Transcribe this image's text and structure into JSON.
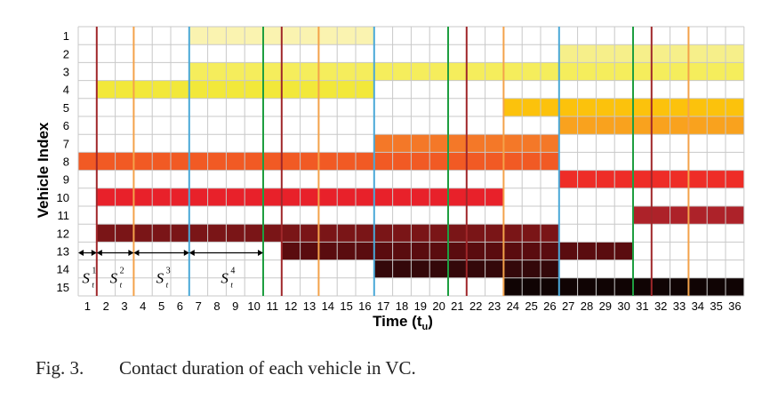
{
  "chart_data": {
    "type": "heatmap",
    "xlabel": "Time (t",
    "xlabel_sub": "u",
    "xlabel_close": ")",
    "ylabel": "Vehicle Index",
    "x_ticks": [
      "1",
      "2",
      "3",
      "4",
      "5",
      "6",
      "7",
      "8",
      "9",
      "10",
      "11",
      "12",
      "13",
      "14",
      "15",
      "16",
      "17",
      "18",
      "19",
      "20",
      "21",
      "22",
      "23",
      "24",
      "25",
      "26",
      "27",
      "28",
      "29",
      "30",
      "31",
      "32",
      "33",
      "34",
      "35",
      "36"
    ],
    "y_ticks": [
      "1",
      "2",
      "3",
      "4",
      "5",
      "6",
      "7",
      "8",
      "9",
      "10",
      "11",
      "12",
      "13",
      "14",
      "15"
    ],
    "grid": true,
    "contacts": [
      {
        "vehicle": 1,
        "start": 7,
        "end": 16,
        "color": "#faf3b0"
      },
      {
        "vehicle": 2,
        "start": 27,
        "end": 36,
        "color": "#f6ef8a"
      },
      {
        "vehicle": 3,
        "start": 7,
        "end": 36,
        "color": "#f5ed5c"
      },
      {
        "vehicle": 4,
        "start": 2,
        "end": 16,
        "color": "#f2e83a"
      },
      {
        "vehicle": 5,
        "start": 24,
        "end": 36,
        "color": "#fcc20c"
      },
      {
        "vehicle": 6,
        "start": 27,
        "end": 36,
        "color": "#f9a21e"
      },
      {
        "vehicle": 7,
        "start": 17,
        "end": 26,
        "color": "#f47828"
      },
      {
        "vehicle": 8,
        "start": 1,
        "end": 26,
        "color": "#f15a24"
      },
      {
        "vehicle": 9,
        "start": 27,
        "end": 36,
        "color": "#ee2d27"
      },
      {
        "vehicle": 10,
        "start": 2,
        "end": 23,
        "color": "#e8212a"
      },
      {
        "vehicle": 11,
        "start": 31,
        "end": 36,
        "color": "#ad2229"
      },
      {
        "vehicle": 12,
        "start": 2,
        "end": 26,
        "color": "#7a1517"
      },
      {
        "vehicle": 13,
        "start": 12,
        "end": 30,
        "color": "#5a0c0f"
      },
      {
        "vehicle": 14,
        "start": 17,
        "end": 26,
        "color": "#34080a"
      },
      {
        "vehicle": 15,
        "start": 24,
        "end": 36,
        "color": "#100404"
      }
    ],
    "vertical_lines": [
      {
        "at": 1.5,
        "color": "#a0272a"
      },
      {
        "at": 3.5,
        "color": "#f4a24a"
      },
      {
        "at": 6.5,
        "color": "#4aa8d8"
      },
      {
        "at": 10.5,
        "color": "#1e9e40"
      },
      {
        "at": 11.5,
        "color": "#a0272a"
      },
      {
        "at": 13.5,
        "color": "#f4a24a"
      },
      {
        "at": 16.5,
        "color": "#4aa8d8"
      },
      {
        "at": 20.5,
        "color": "#1e9e40"
      },
      {
        "at": 21.5,
        "color": "#a0272a"
      },
      {
        "at": 23.5,
        "color": "#f4a24a"
      },
      {
        "at": 26.5,
        "color": "#4aa8d8"
      },
      {
        "at": 30.5,
        "color": "#1e9e40"
      },
      {
        "at": 31.5,
        "color": "#a0272a"
      },
      {
        "at": 33.5,
        "color": "#f4a24a"
      }
    ],
    "intervals": [
      {
        "label": "S",
        "sup": "1",
        "sub": "t",
        "from": 0.5,
        "to": 1.5
      },
      {
        "label": "S",
        "sup": "2",
        "sub": "t",
        "from": 1.5,
        "to": 3.5
      },
      {
        "label": "S",
        "sup": "3",
        "sub": "t",
        "from": 3.5,
        "to": 6.5
      },
      {
        "label": "S",
        "sup": "4",
        "sub": "t",
        "from": 6.5,
        "to": 10.5
      }
    ]
  },
  "caption": {
    "fig_label": "Fig. 3.",
    "text": "Contact duration of each vehicle in VC."
  }
}
